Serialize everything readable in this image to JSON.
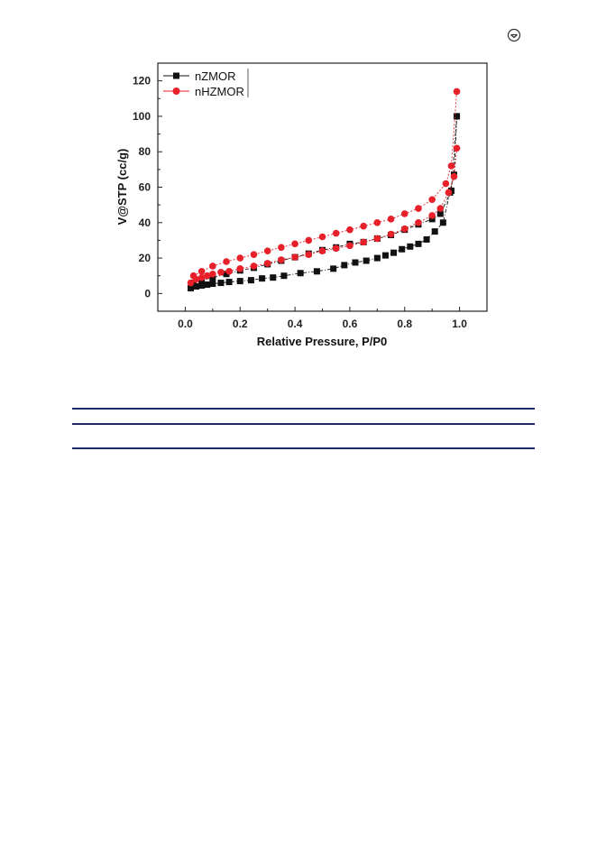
{
  "chart_data": {
    "type": "line",
    "xlabel": "Relative Pressure, P/P0",
    "ylabel": "V@STP (cc/g)",
    "xlim": [
      -0.1,
      1.1
    ],
    "ylim": [
      -10,
      130
    ],
    "x_ticks": [
      "0.0",
      "0.2",
      "0.4",
      "0.6",
      "0.8",
      "1.0"
    ],
    "y_ticks": [
      "0",
      "20",
      "40",
      "60",
      "80",
      "100",
      "120"
    ],
    "legend_position": "top-left",
    "grid": false,
    "series": [
      {
        "name": "nZMOR",
        "color": "#111111",
        "marker": "square",
        "adsorption": {
          "x": [
            0.02,
            0.04,
            0.06,
            0.08,
            0.1,
            0.13,
            0.16,
            0.2,
            0.24,
            0.28,
            0.32,
            0.36,
            0.42,
            0.48,
            0.54,
            0.58,
            0.62,
            0.66,
            0.7,
            0.73,
            0.76,
            0.79,
            0.82,
            0.85,
            0.88,
            0.91,
            0.94,
            0.965,
            0.98,
            0.99
          ],
          "y": [
            3,
            4,
            4.5,
            5,
            5.5,
            6,
            6.5,
            7,
            7.5,
            8.5,
            9,
            10,
            11.5,
            12.5,
            14,
            16,
            17.5,
            18.5,
            20,
            21.5,
            23,
            25,
            26.5,
            28,
            30.5,
            35,
            40,
            57,
            67,
            100
          ]
        },
        "desorption": {
          "x": [
            0.99,
            0.97,
            0.93,
            0.9,
            0.85,
            0.8,
            0.75,
            0.7,
            0.65,
            0.6,
            0.55,
            0.5,
            0.45,
            0.4,
            0.35,
            0.3,
            0.25,
            0.2,
            0.15,
            0.1,
            0.06,
            0.03
          ],
          "y": [
            100,
            58,
            45,
            42,
            39,
            36,
            33,
            31,
            29,
            28,
            26,
            24.5,
            22.5,
            20.5,
            18.5,
            16.5,
            14.5,
            13,
            11,
            9,
            7.5,
            6
          ]
        }
      },
      {
        "name": "nHZMOR",
        "color": "#e8202a",
        "marker": "circle",
        "adsorption": {
          "x": [
            0.02,
            0.04,
            0.06,
            0.08,
            0.1,
            0.13,
            0.16,
            0.2,
            0.25,
            0.3,
            0.35,
            0.4,
            0.45,
            0.5,
            0.55,
            0.6,
            0.65,
            0.7,
            0.75,
            0.8,
            0.85,
            0.9,
            0.93,
            0.96,
            0.98,
            0.99
          ],
          "y": [
            6,
            8,
            9,
            10,
            11,
            12,
            12.5,
            14,
            15.5,
            17,
            19,
            20.5,
            22,
            24,
            25.5,
            27,
            29,
            31,
            33.5,
            36.5,
            40,
            44,
            48,
            57,
            66,
            82
          ]
        },
        "desorption": {
          "x": [
            0.99,
            0.97,
            0.95,
            0.9,
            0.85,
            0.8,
            0.75,
            0.7,
            0.65,
            0.6,
            0.55,
            0.5,
            0.45,
            0.4,
            0.35,
            0.3,
            0.25,
            0.2,
            0.15,
            0.1,
            0.06,
            0.03
          ],
          "y": [
            114,
            72,
            62,
            53,
            48,
            45,
            42,
            40,
            38,
            36,
            34,
            32,
            30,
            28,
            26,
            24,
            22,
            20,
            18,
            15.5,
            12.5,
            10
          ]
        }
      }
    ]
  },
  "icons": {
    "corner": "download-arrow-icon"
  }
}
